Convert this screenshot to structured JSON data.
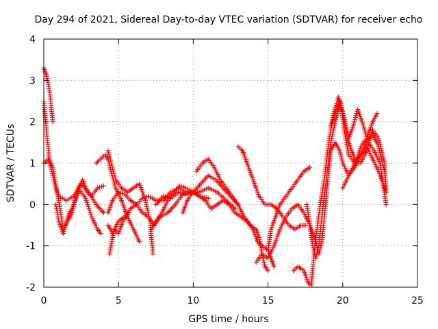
{
  "chart_data": {
    "type": "scatter",
    "title": "Day 294 of 2021, Sidereal Day-to-day VTEC variation (SDTVAR) for receiver echo",
    "xlabel": "GPS time / hours",
    "ylabel": "SDTVAR / TECUs",
    "xlim": [
      0,
      25
    ],
    "ylim": [
      -2,
      4
    ],
    "xticks": [
      0,
      5,
      10,
      15,
      20,
      25
    ],
    "yticks": [
      -2,
      -1,
      0,
      1,
      2,
      3,
      4
    ],
    "grid": true,
    "marker": "+",
    "color": "#ff0000",
    "tracks": [
      [
        [
          0.0,
          3.3
        ],
        [
          0.2,
          3.1
        ],
        [
          0.4,
          2.7
        ],
        [
          0.6,
          2.0
        ]
      ],
      [
        [
          0.0,
          1.0
        ],
        [
          0.3,
          1.1
        ],
        [
          0.6,
          0.9
        ],
        [
          0.8,
          0.5
        ],
        [
          1.0,
          0.1
        ],
        [
          1.3,
          -0.6
        ],
        [
          1.6,
          -0.4
        ],
        [
          1.9,
          -0.2
        ],
        [
          2.2,
          0.3
        ],
        [
          2.6,
          0.6
        ],
        [
          2.9,
          0.3
        ],
        [
          3.2,
          0.2
        ],
        [
          3.6,
          0.4
        ],
        [
          4.0,
          0.45
        ]
      ],
      [
        [
          0.0,
          2.5
        ],
        [
          0.2,
          1.7
        ],
        [
          0.4,
          1.0
        ],
        [
          0.6,
          0.7
        ],
        [
          0.8,
          0.4
        ],
        [
          1.0,
          0.2
        ],
        [
          1.5,
          0.1
        ],
        [
          2.0,
          0.2
        ],
        [
          2.5,
          0.5
        ],
        [
          3.0,
          0.3
        ],
        [
          3.5,
          0.0
        ],
        [
          4.0,
          -0.2
        ]
      ],
      [
        [
          0.8,
          0.0
        ],
        [
          1.0,
          -0.4
        ],
        [
          1.3,
          -0.7
        ],
        [
          1.6,
          -0.3
        ],
        [
          2.0,
          0.0
        ],
        [
          2.4,
          0.35
        ],
        [
          2.8,
          0.15
        ],
        [
          3.2,
          -0.3
        ],
        [
          3.6,
          -0.6
        ],
        [
          3.8,
          -0.7
        ]
      ],
      [
        [
          3.5,
          1.0
        ],
        [
          3.8,
          1.1
        ],
        [
          4.1,
          1.2
        ],
        [
          4.3,
          1.1
        ],
        [
          4.5,
          0.8
        ],
        [
          4.8,
          0.4
        ],
        [
          5.2,
          0.1
        ],
        [
          5.6,
          -0.3
        ],
        [
          6.0,
          -0.6
        ],
        [
          6.4,
          -0.9
        ]
      ],
      [
        [
          4.3,
          1.3
        ],
        [
          4.5,
          1.0
        ],
        [
          4.8,
          0.6
        ],
        [
          5.2,
          0.4
        ],
        [
          5.6,
          0.3
        ],
        [
          6.0,
          0.4
        ],
        [
          6.4,
          0.5
        ],
        [
          6.8,
          0.1
        ],
        [
          7.1,
          -0.4
        ],
        [
          7.3,
          -1.2
        ]
      ],
      [
        [
          4.3,
          -0.5
        ],
        [
          4.6,
          -0.7
        ],
        [
          5.0,
          -0.4
        ],
        [
          5.4,
          -0.3
        ],
        [
          5.8,
          -0.1
        ],
        [
          6.2,
          0.0
        ],
        [
          6.6,
          0.15
        ],
        [
          7.0,
          0.2
        ],
        [
          7.5,
          0.1
        ],
        [
          8.0,
          0.1
        ],
        [
          8.5,
          0.3
        ],
        [
          9.0,
          0.4
        ],
        [
          9.5,
          0.3
        ]
      ],
      [
        [
          4.3,
          -0.2
        ],
        [
          4.6,
          0.1
        ],
        [
          5.0,
          0.3
        ],
        [
          5.4,
          0.25
        ],
        [
          5.8,
          0.1
        ],
        [
          6.2,
          0.0
        ],
        [
          6.6,
          -0.2
        ],
        [
          7.0,
          -0.3
        ],
        [
          7.4,
          -0.5
        ],
        [
          7.8,
          -0.3
        ],
        [
          8.3,
          -0.2
        ],
        [
          8.8,
          0.0
        ],
        [
          9.3,
          0.25
        ],
        [
          9.8,
          0.3
        ],
        [
          10.4,
          0.3
        ],
        [
          11.0,
          0.4
        ],
        [
          11.6,
          0.3
        ],
        [
          12.2,
          0.1
        ],
        [
          12.8,
          -0.1
        ]
      ],
      [
        [
          4.4,
          -1.2
        ],
        [
          4.7,
          -0.6
        ],
        [
          5.0,
          -0.7
        ],
        [
          5.3,
          -0.4
        ],
        [
          5.7,
          -0.2
        ]
      ],
      [
        [
          7.2,
          -0.6
        ],
        [
          7.5,
          -0.4
        ],
        [
          7.9,
          -0.2
        ],
        [
          8.3,
          0.1
        ],
        [
          8.7,
          0.3
        ],
        [
          9.1,
          0.45
        ],
        [
          9.5,
          0.4
        ],
        [
          10.0,
          0.3
        ],
        [
          10.5,
          0.2
        ],
        [
          11.0,
          0.15
        ]
      ],
      [
        [
          7.5,
          0.0
        ],
        [
          8.0,
          0.2
        ],
        [
          8.5,
          0.15
        ],
        [
          9.0,
          0.3
        ],
        [
          9.5,
          0.25
        ],
        [
          10.0,
          0.3
        ],
        [
          10.5,
          0.5
        ],
        [
          11.0,
          0.7
        ],
        [
          11.5,
          0.6
        ],
        [
          12.0,
          0.4
        ],
        [
          12.5,
          0.2
        ],
        [
          13.0,
          0.0
        ]
      ],
      [
        [
          9.3,
          -0.2
        ],
        [
          9.6,
          0.1
        ],
        [
          10.0,
          0.3
        ],
        [
          10.4,
          0.2
        ],
        [
          10.8,
          0.1
        ],
        [
          11.2,
          -0.1
        ],
        [
          11.6,
          0.0
        ],
        [
          12.0,
          0.1
        ],
        [
          12.4,
          0.0
        ],
        [
          12.8,
          -0.2
        ],
        [
          13.2,
          -0.3
        ],
        [
          13.6,
          -0.4
        ],
        [
          14.0,
          -0.6
        ],
        [
          14.3,
          -0.9
        ],
        [
          14.6,
          -1.0
        ],
        [
          15.0,
          -1.1
        ],
        [
          15.2,
          -1.3
        ],
        [
          15.4,
          -1.5
        ]
      ],
      [
        [
          10.2,
          0.8
        ],
        [
          10.6,
          1.0
        ],
        [
          11.0,
          1.1
        ],
        [
          11.4,
          0.9
        ],
        [
          11.8,
          0.6
        ],
        [
          12.2,
          0.4
        ],
        [
          12.6,
          0.2
        ],
        [
          13.0,
          0.0
        ],
        [
          13.4,
          -0.3
        ],
        [
          13.8,
          -0.5
        ],
        [
          14.2,
          -0.6
        ],
        [
          14.4,
          -0.8
        ],
        [
          14.6,
          -1.2
        ],
        [
          14.8,
          -1.5
        ],
        [
          15.0,
          -1.6
        ]
      ],
      [
        [
          13.0,
          1.4
        ],
        [
          13.3,
          1.3
        ],
        [
          13.6,
          1.0
        ],
        [
          14.0,
          0.6
        ],
        [
          14.4,
          0.2
        ],
        [
          14.8,
          0.0
        ],
        [
          15.2,
          0.0
        ],
        [
          15.6,
          -0.1
        ],
        [
          16.0,
          -0.3
        ],
        [
          16.4,
          -0.5
        ],
        [
          16.8,
          -0.6
        ],
        [
          17.2,
          -0.5
        ],
        [
          17.5,
          -0.5
        ]
      ],
      [
        [
          15.0,
          -1.1
        ],
        [
          15.2,
          -0.6
        ],
        [
          15.5,
          -0.3
        ],
        [
          15.8,
          0.0
        ],
        [
          16.2,
          0.2
        ],
        [
          16.6,
          0.4
        ],
        [
          17.0,
          0.6
        ],
        [
          17.4,
          0.8
        ],
        [
          17.8,
          0.9
        ]
      ],
      [
        [
          14.2,
          -1.4
        ],
        [
          14.6,
          -1.2
        ],
        [
          15.0,
          -1.3
        ],
        [
          15.4,
          -1.0
        ],
        [
          15.8,
          -0.6
        ],
        [
          16.2,
          -0.3
        ],
        [
          16.6,
          -0.1
        ],
        [
          17.0,
          0.0
        ],
        [
          17.4,
          -0.2
        ],
        [
          17.8,
          -0.5
        ],
        [
          18.2,
          -0.9
        ],
        [
          18.4,
          -1.2
        ],
        [
          18.6,
          -0.9
        ],
        [
          18.8,
          -0.2
        ],
        [
          19.0,
          0.6
        ],
        [
          19.2,
          1.3
        ],
        [
          19.5,
          1.5
        ],
        [
          19.8,
          1.3
        ],
        [
          20.0,
          1.0
        ],
        [
          20.4,
          0.7
        ],
        [
          20.8,
          0.9
        ],
        [
          21.2,
          1.2
        ],
        [
          21.6,
          1.5
        ],
        [
          22.0,
          1.7
        ],
        [
          22.4,
          1.4
        ],
        [
          22.8,
          0.8
        ],
        [
          22.9,
          0.4
        ]
      ],
      [
        [
          16.7,
          -1.6
        ],
        [
          17.0,
          -1.5
        ],
        [
          17.4,
          -1.6
        ],
        [
          17.7,
          -1.9
        ],
        [
          17.9,
          -1.95
        ],
        [
          18.0,
          -1.5
        ],
        [
          18.2,
          -0.8
        ],
        [
          18.5,
          0.0
        ],
        [
          18.8,
          0.7
        ],
        [
          19.1,
          1.6
        ],
        [
          19.4,
          2.2
        ],
        [
          19.7,
          2.6
        ],
        [
          19.9,
          2.4
        ],
        [
          20.1,
          1.8
        ],
        [
          20.4,
          1.2
        ],
        [
          20.8,
          1.0
        ],
        [
          21.2,
          1.0
        ],
        [
          21.6,
          1.3
        ],
        [
          22.0,
          1.8
        ],
        [
          22.4,
          1.6
        ],
        [
          22.8,
          1.0
        ],
        [
          22.9,
          0.3
        ]
      ],
      [
        [
          17.6,
          0.0
        ],
        [
          17.8,
          -0.5
        ],
        [
          18.0,
          -1.0
        ],
        [
          18.2,
          -1.3
        ],
        [
          18.4,
          -1.0
        ],
        [
          18.6,
          -0.3
        ],
        [
          18.8,
          0.3
        ],
        [
          19.0,
          0.9
        ],
        [
          19.2,
          1.5
        ],
        [
          19.5,
          2.0
        ],
        [
          19.8,
          2.4
        ],
        [
          20.0,
          2.2
        ],
        [
          20.3,
          1.6
        ],
        [
          20.6,
          1.3
        ],
        [
          20.9,
          1.0
        ],
        [
          21.2,
          1.4
        ],
        [
          21.6,
          1.6
        ],
        [
          22.0,
          2.0
        ],
        [
          22.3,
          2.2
        ]
      ],
      [
        [
          19.2,
          1.9
        ],
        [
          19.5,
          2.2
        ],
        [
          19.8,
          2.5
        ],
        [
          20.1,
          2.1
        ],
        [
          20.4,
          1.6
        ],
        [
          20.7,
          1.9
        ],
        [
          21.0,
          2.3
        ],
        [
          21.3,
          2.0
        ],
        [
          21.7,
          1.5
        ],
        [
          22.1,
          1.3
        ],
        [
          22.5,
          1.0
        ],
        [
          22.9,
          0.0
        ]
      ],
      [
        [
          20.0,
          0.4
        ],
        [
          20.4,
          0.7
        ],
        [
          20.8,
          1.0
        ],
        [
          21.2,
          1.2
        ],
        [
          21.6,
          1.4
        ],
        [
          22.0,
          1.1
        ],
        [
          22.4,
          0.8
        ],
        [
          22.7,
          0.5
        ],
        [
          22.9,
          0.3
        ]
      ]
    ]
  }
}
